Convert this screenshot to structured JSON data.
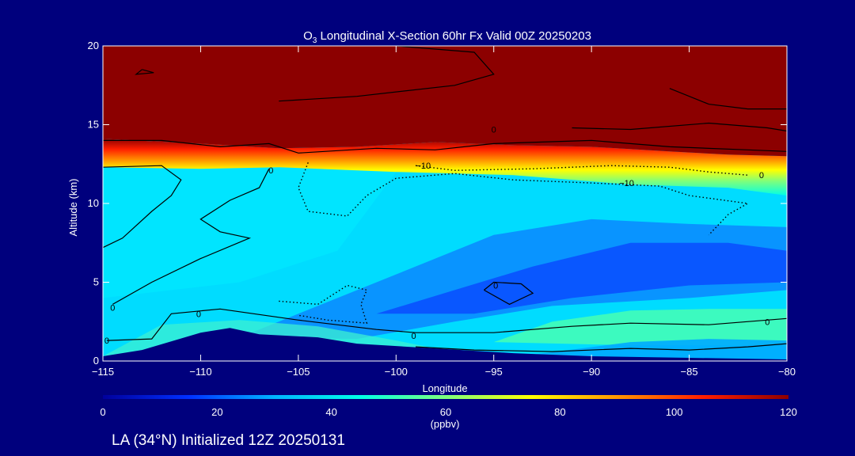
{
  "page": {
    "background_color": "#00007d",
    "foreground_color": "#ffffff"
  },
  "chart_data": {
    "type": "heatmap",
    "title": "O₃ Longitudinal X-Section 60hr  Fx Valid 00Z 20250203",
    "title_prefix": "O",
    "title_subscript": "3",
    "title_suffix": " Longitudinal X-Section 60hr  Fx Valid 00Z 20250203",
    "xlabel": "Longitude",
    "ylabel": "Altitude (km)",
    "xlim": [
      -115,
      -80
    ],
    "ylim": [
      0,
      20
    ],
    "x_ticks": [
      -115,
      -110,
      -105,
      -100,
      -95,
      -90,
      -85,
      -80
    ],
    "x_tick_labels": [
      "−115",
      "−110",
      "−105",
      "−100",
      "−95",
      "−90",
      "−85",
      "−80"
    ],
    "y_ticks": [
      0,
      5,
      10,
      15,
      20
    ],
    "y_tick_labels": [
      "0",
      "5",
      "10",
      "15",
      "20"
    ],
    "colorbar": {
      "range": [
        0,
        120
      ],
      "ticks": [
        0,
        20,
        40,
        60,
        80,
        100,
        120
      ],
      "tick_labels": [
        "0",
        "20",
        "40",
        "60",
        "80",
        "100",
        "120"
      ],
      "unit_label": "(ppbv)",
      "colors": [
        "#00009c",
        "#0030ff",
        "#00b4ff",
        "#00ffe6",
        "#7dff7d",
        "#ffff00",
        "#ff9600",
        "#ff1e00",
        "#8c0000"
      ]
    },
    "contour_labels": [
      {
        "text": "0",
        "lon": -114.5,
        "alt": 3.4
      },
      {
        "text": "0",
        "lon": -114.8,
        "alt": 1.3
      },
      {
        "text": "0",
        "lon": -110.1,
        "alt": 3.0
      },
      {
        "text": "0",
        "lon": -99.1,
        "alt": 1.6
      },
      {
        "text": "0",
        "lon": -94.9,
        "alt": 4.8
      },
      {
        "text": "0",
        "lon": -95.0,
        "alt": 14.7
      },
      {
        "text": "0",
        "lon": -106.4,
        "alt": 12.1
      },
      {
        "text": "0",
        "lon": -81.3,
        "alt": 11.8
      },
      {
        "text": "0",
        "lon": -81.0,
        "alt": 2.5
      },
      {
        "text": "−10",
        "lon": -98.6,
        "alt": 12.4
      },
      {
        "text": "−10",
        "lon": -88.2,
        "alt": 11.3
      }
    ],
    "terrain": [
      {
        "lon": -115,
        "alt": 0.3
      },
      {
        "lon": -113,
        "alt": 0.7
      },
      {
        "lon": -110,
        "alt": 1.8
      },
      {
        "lon": -108.5,
        "alt": 2.1
      },
      {
        "lon": -107,
        "alt": 1.7
      },
      {
        "lon": -104,
        "alt": 1.5
      },
      {
        "lon": -102,
        "alt": 1.1
      },
      {
        "lon": -98,
        "alt": 0.8
      },
      {
        "lon": -94,
        "alt": 0.5
      },
      {
        "lon": -90,
        "alt": 0.3
      },
      {
        "lon": -85,
        "alt": 0.2
      },
      {
        "lon": -80,
        "alt": 0.1
      }
    ],
    "field_bands": [
      {
        "label": "stratosphere",
        "color": "#8c0000",
        "top_lon": [
          -115,
          -80
        ],
        "top_alt": [
          20,
          20
        ],
        "bottom_alt": [
          14.0,
          13.1,
          13.5,
          13.2
        ]
      },
      {
        "label": "tropopause gradient",
        "colors": [
          "#ff1e00",
          "#ff9600",
          "#ffff00",
          "#7dff7d"
        ],
        "near_alt": [
          12.5,
          13.5
        ]
      },
      {
        "label": "free troposphere",
        "color": "#00dcff",
        "alt_range": [
          4,
          12
        ]
      },
      {
        "label": "low-ozone tongue",
        "color": "#0a5aff",
        "lon_range": [
          -100,
          -82
        ],
        "alt_range": [
          3,
          8
        ]
      },
      {
        "label": "boundary layer",
        "color": "#46ffb4",
        "lon_range": [
          -93,
          -80
        ],
        "alt_range": [
          1,
          3
        ]
      }
    ],
    "grid": false,
    "legend": "colorbar-bottom"
  },
  "footer": {
    "caption": "LA (34°N) Initialized 12Z 20250131"
  }
}
